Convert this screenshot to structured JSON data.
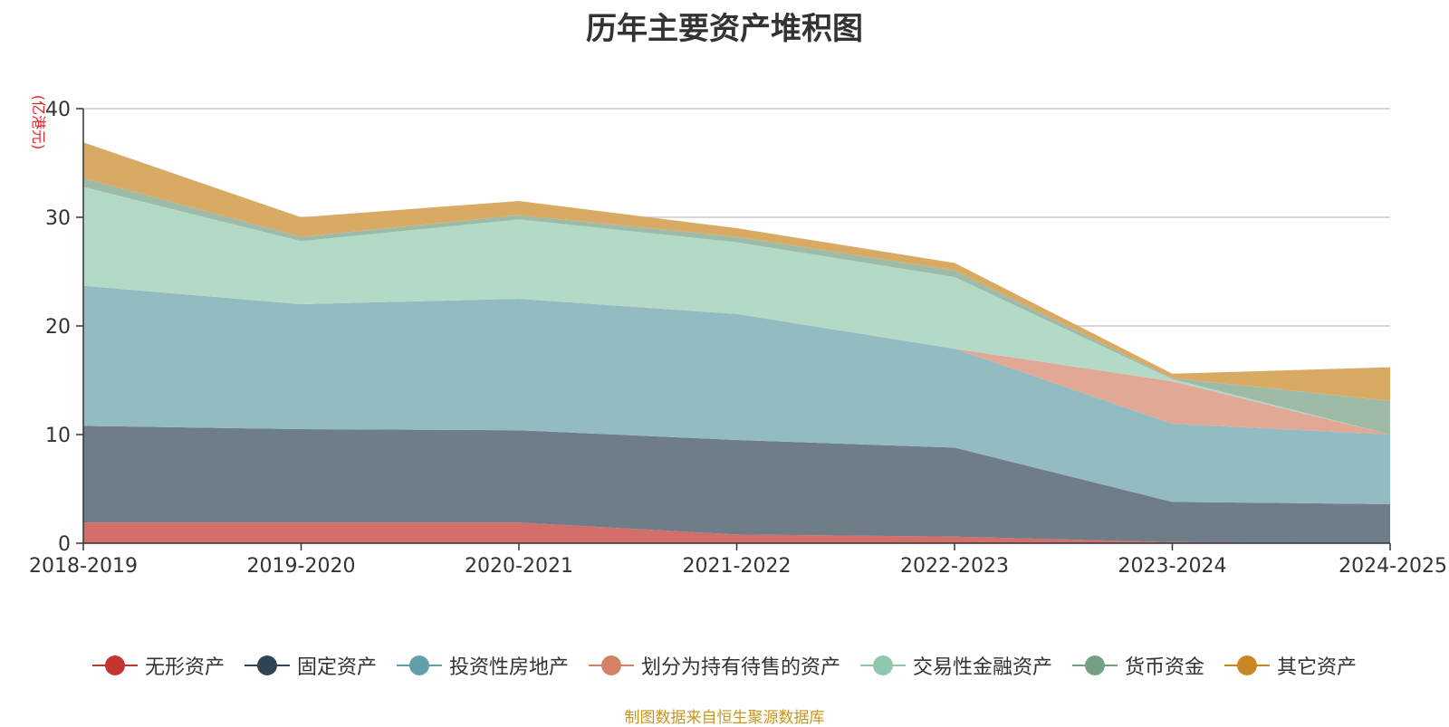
{
  "chart_data": {
    "type": "area",
    "stacked": true,
    "title": "历年主要资产堆积图",
    "ylabel": "(亿港元)",
    "xlabel": "",
    "categories": [
      "2018-2019",
      "2019-2020",
      "2020-2021",
      "2021-2022",
      "2022-2023",
      "2023-2024",
      "2024-2025"
    ],
    "ylim": [
      0,
      40
    ],
    "yticks": [
      0,
      10,
      20,
      30,
      40
    ],
    "grid": true,
    "legend_position": "bottom",
    "series": [
      {
        "name": "无形资产",
        "color": "#c23531",
        "fill": "#d36e6a",
        "values": [
          1.9,
          1.9,
          1.9,
          0.8,
          0.6,
          0.1,
          0.0
        ]
      },
      {
        "name": "固定资产",
        "color": "#2f4554",
        "fill": "#6f7d88",
        "values": [
          8.9,
          8.6,
          8.5,
          8.7,
          8.2,
          3.7,
          3.6
        ]
      },
      {
        "name": "投资性房地产",
        "color": "#61a0a8",
        "fill": "#93bcc2",
        "values": [
          12.9,
          11.5,
          12.1,
          11.6,
          9.1,
          7.2,
          6.4
        ]
      },
      {
        "name": "划分为持有待售的资产",
        "color": "#d48265",
        "fill": "#e1a895",
        "values": [
          0.0,
          0.0,
          0.0,
          0.0,
          0.0,
          3.9,
          0.0
        ]
      },
      {
        "name": "交易性金融资产",
        "color": "#91c7ae",
        "fill": "#b3dac7",
        "values": [
          9.1,
          5.8,
          7.3,
          6.6,
          6.6,
          0.2,
          0.0
        ]
      },
      {
        "name": "货币资金",
        "color": "#749f83",
        "fill": "#9ebba8",
        "values": [
          0.8,
          0.4,
          0.4,
          0.5,
          0.6,
          0.1,
          3.1
        ]
      },
      {
        "name": "其它资产",
        "color": "#ca8622",
        "fill": "#d9aa64",
        "values": [
          3.3,
          1.8,
          1.3,
          0.8,
          0.7,
          0.4,
          3.1
        ]
      }
    ],
    "source": "制图数据来自恒生聚源数据库"
  }
}
